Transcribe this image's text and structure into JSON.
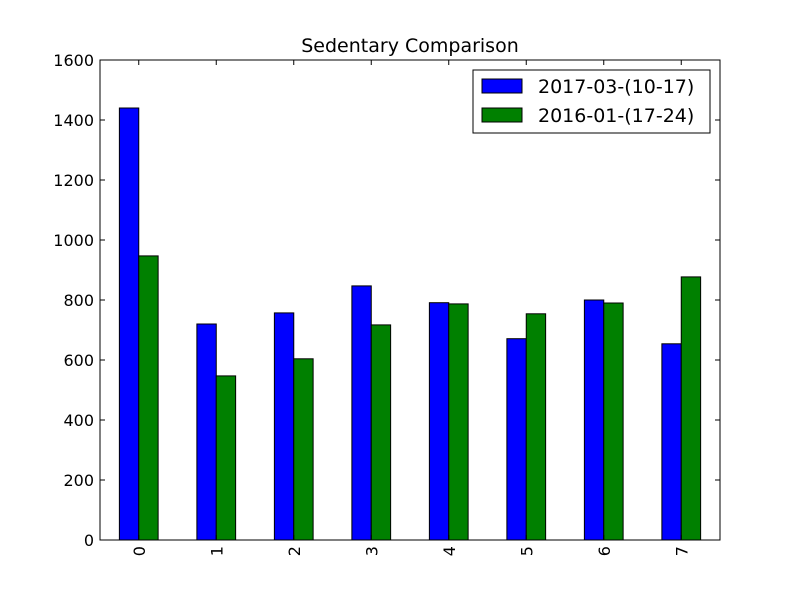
{
  "chart_data": {
    "type": "bar",
    "title": "Sedentary Comparison",
    "xlabel": "",
    "ylabel": "",
    "categories": [
      "0",
      "1",
      "2",
      "3",
      "4",
      "5",
      "6",
      "7"
    ],
    "series": [
      {
        "name": "2017-03-(10-17)",
        "color": "#0000ff",
        "values": [
          1440,
          720,
          757,
          847,
          791,
          671,
          800,
          654
        ]
      },
      {
        "name": "2016-01-(17-24)",
        "color": "#008000",
        "values": [
          947,
          547,
          604,
          717,
          787,
          754,
          790,
          877
        ]
      }
    ],
    "ylim": [
      0,
      1600
    ],
    "yticks": [
      "0",
      "200",
      "400",
      "600",
      "800",
      "1000",
      "1200",
      "1400",
      "1600"
    ],
    "grid": false,
    "legend_position": "top-right"
  }
}
